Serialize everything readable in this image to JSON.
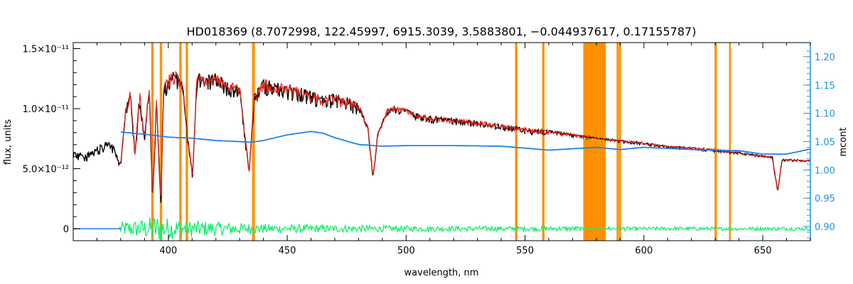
{
  "chart_data": {
    "type": "line",
    "title": "HD018369    (8.7072998, 122.45997, 6915.3039, 3.5883801, −0.044937617, 0.17155787)",
    "xlabel": "wavelength, nm",
    "ylabel": "flux, units",
    "y2label": "mcont",
    "xlim": [
      360,
      670
    ],
    "ylim": [
      -1e-12,
      1.55e-11
    ],
    "y2lim": [
      0.875,
      1.225
    ],
    "x_ticks": [
      400,
      450,
      500,
      550,
      600,
      650
    ],
    "x_tick_labels": [
      "400",
      "450",
      "500",
      "550",
      "600",
      "650"
    ],
    "y_ticks": [
      0,
      5e-12,
      1e-11,
      1.5e-11
    ],
    "y_tick_labels": [
      "0",
      "5.0×10⁻¹²",
      "1.0×10⁻¹¹",
      "1.5×10⁻¹¹"
    ],
    "y2_ticks": [
      0.9,
      0.95,
      1.0,
      1.05,
      1.1,
      1.15,
      1.2
    ],
    "y2_tick_labels": [
      "0.90",
      "0.95",
      "1.00",
      "1.05",
      "1.10",
      "1.15",
      "1.20"
    ],
    "masked_regions": [
      [
        392.8,
        393.8
      ],
      [
        396.4,
        397.4
      ],
      [
        404.6,
        405.6
      ],
      [
        407.3,
        408.3
      ],
      [
        435.2,
        436.4
      ],
      [
        545.8,
        546.8
      ],
      [
        557.2,
        558.2
      ],
      [
        574.5,
        584.0
      ],
      [
        588.5,
        589.5
      ],
      [
        589.6,
        590.4
      ],
      [
        629.7,
        630.7
      ],
      [
        635.8,
        636.6
      ]
    ],
    "series": [
      {
        "role": "observed",
        "x": [
          360,
          365,
          370,
          375,
          378,
          380,
          382,
          384,
          386,
          388,
          390,
          392,
          393.4,
          395,
          396.9,
          398,
          400,
          402,
          404,
          406,
          408,
          410.2,
          412,
          415,
          420,
          425,
          430,
          434.0,
          436,
          440,
          445,
          450,
          455,
          460,
          465,
          470,
          475,
          480,
          484,
          486.1,
          488,
          492,
          495,
          500,
          505,
          510,
          520,
          530,
          540,
          550,
          560,
          570,
          580,
          590,
          600,
          610,
          620,
          630,
          640,
          650,
          654,
          656.3,
          658,
          662,
          670
        ],
        "y": [
          6.5e-12,
          6.2e-12,
          6.8e-12,
          7.5e-12,
          6.5e-12,
          5.5e-12,
          1e-11,
          1.15e-11,
          6.5e-12,
          1.15e-11,
          8e-12,
          1.2e-11,
          2.5e-12,
          1.1e-11,
          2.2e-12,
          1.2e-11,
          1.28e-11,
          1.32e-11,
          1.3e-11,
          1.25e-11,
          8e-12,
          4.5e-12,
          1.3e-11,
          1.28e-11,
          1.3e-11,
          1.22e-11,
          1.2e-11,
          4.8e-12,
          1.12e-11,
          1.25e-11,
          1.22e-11,
          1.2e-11,
          1.18e-11,
          1.15e-11,
          1.12e-11,
          1.12e-11,
          1.1e-11,
          1.05e-11,
          8.5e-12,
          4.3e-12,
          8e-12,
          1e-11,
          1.02e-11,
          1e-11,
          9.6e-12,
          9.4e-12,
          9.2e-12,
          9e-12,
          8.7e-12,
          8.4e-12,
          8.2e-12,
          7.9e-12,
          7.6e-12,
          7.4e-12,
          7.2e-12,
          6.9e-12,
          6.8e-12,
          6.6e-12,
          6.4e-12,
          6.1e-12,
          6e-12,
          3.1e-12,
          5.8e-12,
          5.8e-12,
          5.7e-12
        ]
      },
      {
        "role": "model",
        "x": [
          380,
          382,
          384,
          386,
          388,
          390,
          392,
          393.4,
          395,
          396.9,
          398,
          400,
          402,
          404,
          406,
          408,
          410.2,
          412,
          415,
          420,
          425,
          430,
          434.0,
          436,
          440,
          445,
          450,
          455,
          460,
          465,
          470,
          475,
          480,
          484,
          486.1,
          488,
          492,
          495,
          500,
          505,
          510,
          520,
          530,
          540,
          550,
          560,
          570,
          580,
          590,
          600,
          610,
          620,
          630,
          640,
          650,
          654,
          656.3,
          658,
          662,
          670
        ],
        "y": [
          5.8e-12,
          1e-11,
          1.15e-11,
          6.6e-12,
          1.15e-11,
          8e-12,
          1.2e-11,
          2.6e-12,
          1.1e-11,
          2.3e-12,
          1.2e-11,
          1.28e-11,
          1.32e-11,
          1.3e-11,
          1.25e-11,
          8.1e-12,
          4.6e-12,
          1.3e-11,
          1.28e-11,
          1.3e-11,
          1.22e-11,
          1.2e-11,
          4.9e-12,
          1.12e-11,
          1.25e-11,
          1.22e-11,
          1.2e-11,
          1.18e-11,
          1.15e-11,
          1.12e-11,
          1.12e-11,
          1.1e-11,
          1.05e-11,
          8.5e-12,
          4.4e-12,
          8e-12,
          1e-11,
          1.02e-11,
          1e-11,
          9.6e-12,
          9.4e-12,
          9.2e-12,
          9e-12,
          8.7e-12,
          8.4e-12,
          8.2e-12,
          7.9e-12,
          7.6e-12,
          7.4e-12,
          7.2e-12,
          6.9e-12,
          6.8e-12,
          6.6e-12,
          6.4e-12,
          6.1e-12,
          6e-12,
          3.2e-12,
          5.8e-12,
          5.8e-12,
          5.7e-12
        ]
      },
      {
        "role": "mcont",
        "axis": "right",
        "x": [
          380,
          390,
          400,
          410,
          420,
          430,
          435,
          440,
          450,
          460,
          465,
          470,
          480,
          490,
          500,
          520,
          540,
          560,
          580,
          590,
          600,
          610,
          620,
          640,
          650,
          660,
          670
        ],
        "y": [
          1.067,
          1.063,
          1.058,
          1.056,
          1.052,
          1.05,
          1.049,
          1.052,
          1.062,
          1.068,
          1.065,
          1.057,
          1.045,
          1.042,
          1.043,
          1.043,
          1.042,
          1.035,
          1.04,
          1.036,
          1.04,
          1.038,
          1.036,
          1.034,
          1.028,
          1.028,
          1.037
        ]
      },
      {
        "role": "residual",
        "x": [
          360,
          379,
          380,
          390,
          395,
          400,
          410,
          420,
          430,
          440,
          450,
          480,
          500,
          550,
          573,
          575,
          584,
          585,
          600,
          650,
          670
        ],
        "y": [
          0,
          0,
          6e-13,
          8e-13,
          1.2e-12,
          9e-13,
          7e-13,
          6e-13,
          5e-13,
          4e-13,
          3.5e-13,
          3e-13,
          2.5e-13,
          2e-13,
          2e-13,
          0,
          0,
          2e-13,
          1.5e-13,
          1.5e-13,
          1.5e-13
        ]
      }
    ],
    "colors": {
      "observed": "#000000",
      "model": "#e8241c",
      "mcont": "#1e82e6",
      "residual": "#14f06e",
      "mask": "#ff9100",
      "right_axis": "#1e96dc",
      "yellow": "#ffee00"
    }
  }
}
